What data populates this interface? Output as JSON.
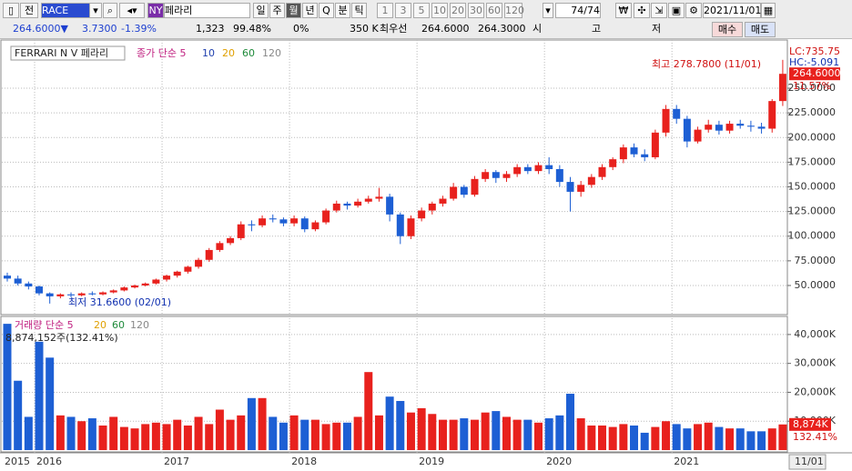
{
  "toolbar": {
    "market": "전",
    "ticker": "RACE",
    "exchange": "NY",
    "name": "페라리",
    "periods": [
      "일",
      "주",
      "월",
      "년",
      "Q",
      "분",
      "틱"
    ],
    "intervals": [
      "1",
      "3",
      "5",
      "10",
      "20",
      "30",
      "60",
      "120"
    ],
    "count": "74/74",
    "date": "2021/11/01"
  },
  "quote": {
    "price": "264.6000▼",
    "change": "3.7300",
    "change_pct": "-1.39%",
    "volume": "1,323",
    "ratio": "99.48%",
    "pct": "0%",
    "size": "350 K",
    "best_label": "최우선",
    "ask": "264.6000",
    "bid": "264.3000",
    "open_label": "시",
    "high_label": "고",
    "low_label": "저",
    "buy": "매수",
    "sell": "매도"
  },
  "chart_data": [
    {
      "type": "candlestick",
      "title": "FERRARI N V  페라리",
      "legend": "종가 단순 5",
      "ma_periods": [
        "10",
        "20",
        "60",
        "120"
      ],
      "ma_colors": [
        "#1f3fae",
        "#e0a000",
        "#1e8a3a",
        "#888888"
      ],
      "max_label": "최고 278.7800 (11/01)",
      "min_label": "최저 31.6600 (02/01)",
      "lc": "LC:735.75",
      "hc": "HC:-5.091",
      "last_price_label": "264.6000",
      "change_label": "11.57%",
      "up_color": "#e8211d",
      "down_color": "#1d5fd4",
      "open": [
        60,
        57,
        52,
        49,
        42,
        39,
        41,
        40,
        42,
        41,
        43,
        45,
        48,
        50,
        52,
        56,
        60,
        64,
        69,
        76,
        86,
        93,
        98,
        112,
        111,
        118,
        117,
        113,
        118,
        107,
        114,
        126,
        133,
        131,
        135,
        138,
        140,
        122,
        100,
        118,
        126,
        133,
        138,
        150,
        142,
        158,
        165,
        159,
        163,
        170,
        166,
        172,
        168,
        155,
        145,
        152,
        160,
        170,
        178,
        190,
        183,
        180,
        205,
        229,
        219,
        196,
        208,
        213,
        207,
        214,
        212,
        211,
        209,
        237
      ],
      "high": [
        63,
        60,
        54,
        50,
        43,
        42,
        43,
        43,
        44,
        44,
        46,
        49,
        51,
        53,
        57,
        61,
        65,
        70,
        78,
        88,
        95,
        100,
        115,
        116,
        121,
        122,
        119,
        121,
        120,
        116,
        128,
        136,
        135,
        138,
        141,
        149,
        143,
        124,
        121,
        129,
        135,
        141,
        154,
        152,
        161,
        168,
        167,
        166,
        173,
        173,
        175,
        180,
        172,
        160,
        156,
        163,
        173,
        180,
        193,
        194,
        188,
        208,
        233,
        233,
        222,
        211,
        218,
        217,
        217,
        218,
        217,
        215,
        239,
        278.78
      ],
      "low": [
        54,
        50,
        46,
        40,
        31.66,
        37,
        38,
        39,
        40,
        40,
        42,
        44,
        47,
        49,
        51,
        54,
        58,
        62,
        67,
        74,
        84,
        91,
        96,
        105,
        109,
        114,
        110,
        110,
        104,
        105,
        112,
        124,
        127,
        129,
        133,
        135,
        115,
        92,
        97,
        115,
        122,
        130,
        136,
        139,
        140,
        155,
        154,
        155,
        160,
        163,
        163,
        163,
        150,
        125,
        140,
        149,
        157,
        167,
        174,
        180,
        176,
        178,
        201,
        214,
        190,
        194,
        205,
        203,
        204,
        209,
        206,
        204,
        205,
        232
      ],
      "close": [
        57,
        52,
        49,
        42,
        39,
        41,
        40,
        42,
        41,
        43,
        45,
        48,
        50,
        52,
        56,
        60,
        64,
        69,
        76,
        86,
        93,
        98,
        112,
        111,
        118,
        117,
        113,
        118,
        107,
        114,
        126,
        133,
        131,
        135,
        138,
        140,
        122,
        100,
        118,
        126,
        133,
        138,
        150,
        142,
        158,
        165,
        159,
        163,
        170,
        166,
        172,
        168,
        155,
        145,
        152,
        160,
        170,
        178,
        190,
        183,
        180,
        205,
        229,
        219,
        196,
        208,
        213,
        207,
        214,
        212,
        211,
        209,
        237,
        264.6
      ],
      "ylim": [
        21.4,
        295.2
      ],
      "yticks": [
        {
          "value": 50,
          "label": "50.0000"
        },
        {
          "value": 75,
          "label": "75.0000"
        },
        {
          "value": 100,
          "label": "100.0000"
        },
        {
          "value": 125,
          "label": "125.0000"
        },
        {
          "value": 150,
          "label": "150.0000"
        },
        {
          "value": 175,
          "label": "175.0000"
        },
        {
          "value": 200,
          "label": "200.0000"
        },
        {
          "value": 225,
          "label": "225.0000"
        },
        {
          "value": 250,
          "label": "250.0000"
        }
      ],
      "grid": true
    },
    {
      "type": "bar",
      "legend": "거래량 단순 5",
      "ma_periods": [
        "20",
        "60",
        "120"
      ],
      "ma_colors": [
        "#e0a000",
        "#1e8a3a",
        "#888888"
      ],
      "last_label": "8,874,152주(132.41%)",
      "axis_value_label": "8,874K",
      "axis_pct_label": "132.41%",
      "categories": [
        "2015",
        null,
        null,
        "2016",
        null,
        null,
        null,
        null,
        null,
        null,
        null,
        null,
        null,
        null,
        null,
        "2017",
        null,
        null,
        null,
        null,
        null,
        null,
        null,
        null,
        null,
        null,
        null,
        "2018",
        null,
        null,
        null,
        null,
        null,
        null,
        null,
        null,
        null,
        null,
        null,
        "2019",
        null,
        null,
        null,
        null,
        null,
        null,
        null,
        null,
        null,
        null,
        null,
        "2020",
        null,
        null,
        null,
        null,
        null,
        null,
        null,
        null,
        null,
        null,
        null,
        "2021",
        null,
        null,
        null,
        null,
        null,
        null,
        null,
        null,
        null,
        "11/01"
      ],
      "values": [
        43700,
        24000,
        11500,
        37500,
        32000,
        12000,
        11500,
        10000,
        11000,
        8500,
        11500,
        8000,
        7500,
        9000,
        9500,
        9000,
        10500,
        8500,
        11500,
        9000,
        14000,
        10500,
        12000,
        18000,
        18000,
        11500,
        9500,
        12000,
        10500,
        10500,
        9000,
        9500,
        9500,
        11500,
        27000,
        12000,
        18500,
        17000,
        13000,
        14500,
        12500,
        10500,
        10500,
        11000,
        10500,
        13000,
        13500,
        11500,
        10500,
        10500,
        9500,
        11000,
        12000,
        19500,
        11000,
        8500,
        8500,
        8000,
        9000,
        8500,
        6000,
        8000,
        10000,
        9000,
        7500,
        9000,
        9500,
        8000,
        7500,
        7500,
        6500,
        6500,
        7500,
        8874
      ],
      "ylim": [
        0,
        45000
      ],
      "yticks": [
        {
          "value": 10000,
          "label": "10,000K"
        },
        {
          "value": 20000,
          "label": "20,000K"
        },
        {
          "value": 30000,
          "label": "30,000K"
        },
        {
          "value": 40000,
          "label": "40,000K"
        }
      ],
      "grid": true
    }
  ]
}
